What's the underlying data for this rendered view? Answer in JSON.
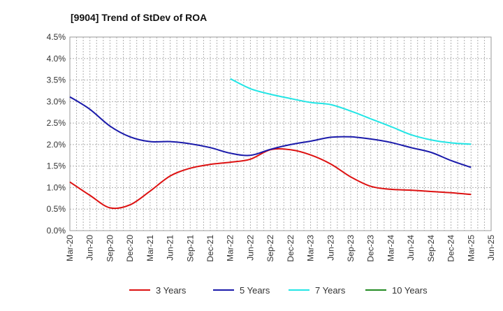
{
  "chart_data": {
    "type": "line",
    "title": "[9904]  Trend of StDev of ROA",
    "xlabel": "",
    "ylabel": "",
    "ylim": [
      0,
      4.5
    ],
    "y_ticks": [
      "0.0%",
      "0.5%",
      "1.0%",
      "1.5%",
      "2.0%",
      "2.5%",
      "3.0%",
      "3.5%",
      "4.0%",
      "4.5%"
    ],
    "x_ticks": [
      "Mar-20",
      "Jun-20",
      "Sep-20",
      "Dec-20",
      "Mar-21",
      "Jun-21",
      "Sep-21",
      "Dec-21",
      "Mar-22",
      "Jun-22",
      "Sep-22",
      "Dec-22",
      "Mar-23",
      "Jun-23",
      "Sep-23",
      "Dec-23",
      "Mar-24",
      "Jun-24",
      "Sep-24",
      "Dec-24",
      "Mar-25",
      "Jun-25"
    ],
    "grid": true,
    "legend_position": "bottom",
    "series": [
      {
        "name": "3 Years",
        "color": "#dd1111",
        "x": [
          "Mar-20",
          "Jun-20",
          "Sep-20",
          "Dec-20",
          "Mar-21",
          "Jun-21",
          "Sep-21",
          "Dec-21",
          "Mar-22",
          "Jun-22",
          "Sep-22",
          "Dec-22",
          "Mar-23",
          "Jun-23",
          "Sep-23",
          "Dec-23",
          "Mar-24",
          "Jun-24",
          "Sep-24",
          "Dec-24",
          "Mar-25"
        ],
        "values": [
          1.13,
          0.82,
          0.53,
          0.6,
          0.92,
          1.27,
          1.45,
          1.54,
          1.59,
          1.66,
          1.88,
          1.88,
          1.76,
          1.55,
          1.25,
          1.03,
          0.96,
          0.94,
          0.91,
          0.88,
          0.84
        ]
      },
      {
        "name": "5 Years",
        "color": "#1a1aaa",
        "x": [
          "Mar-20",
          "Jun-20",
          "Sep-20",
          "Dec-20",
          "Mar-21",
          "Jun-21",
          "Sep-21",
          "Dec-21",
          "Mar-22",
          "Jun-22",
          "Sep-22",
          "Dec-22",
          "Mar-23",
          "Jun-23",
          "Sep-23",
          "Dec-23",
          "Mar-24",
          "Jun-24",
          "Sep-24",
          "Dec-24",
          "Mar-25"
        ],
        "values": [
          3.11,
          2.82,
          2.43,
          2.18,
          2.07,
          2.07,
          2.02,
          1.93,
          1.8,
          1.75,
          1.89,
          2.0,
          2.08,
          2.17,
          2.18,
          2.13,
          2.05,
          1.93,
          1.82,
          1.63,
          1.47
        ]
      },
      {
        "name": "7 Years",
        "color": "#22e5e5",
        "x": [
          "Mar-22",
          "Jun-22",
          "Sep-22",
          "Dec-22",
          "Mar-23",
          "Jun-23",
          "Sep-23",
          "Dec-23",
          "Mar-24",
          "Jun-24",
          "Sep-24",
          "Dec-24",
          "Mar-25"
        ],
        "values": [
          3.53,
          3.3,
          3.17,
          3.07,
          2.98,
          2.93,
          2.78,
          2.6,
          2.42,
          2.23,
          2.11,
          2.04,
          2.01
        ]
      },
      {
        "name": "10 Years",
        "color": "#228b22",
        "x": [],
        "values": []
      }
    ]
  }
}
